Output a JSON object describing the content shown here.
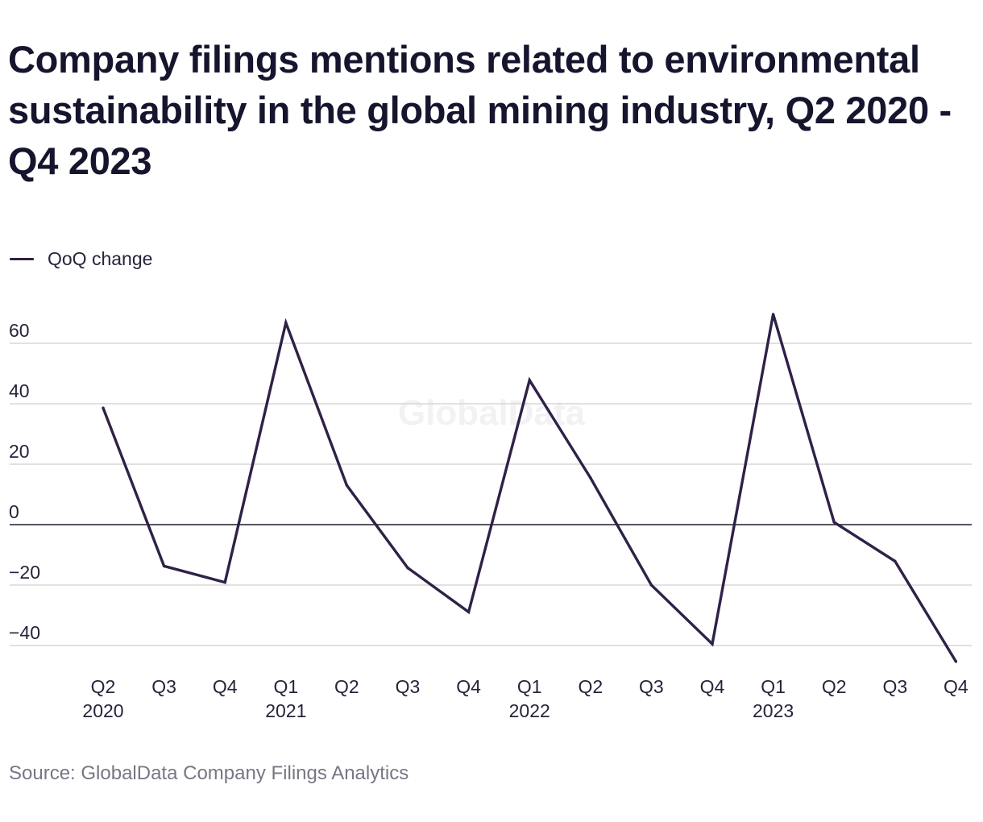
{
  "chart_data": {
    "type": "line",
    "title": "Company filings mentions related to environmental sustainability in the global mining industry, Q2 2020 - Q4 2023",
    "categories": [
      {
        "quarter": "Q2",
        "year": "2020"
      },
      {
        "quarter": "Q3",
        "year": ""
      },
      {
        "quarter": "Q4",
        "year": ""
      },
      {
        "quarter": "Q1",
        "year": "2021"
      },
      {
        "quarter": "Q2",
        "year": ""
      },
      {
        "quarter": "Q3",
        "year": ""
      },
      {
        "quarter": "Q4",
        "year": ""
      },
      {
        "quarter": "Q1",
        "year": "2022"
      },
      {
        "quarter": "Q2",
        "year": ""
      },
      {
        "quarter": "Q3",
        "year": ""
      },
      {
        "quarter": "Q4",
        "year": ""
      },
      {
        "quarter": "Q1",
        "year": "2023"
      },
      {
        "quarter": "Q2",
        "year": ""
      },
      {
        "quarter": "Q3",
        "year": ""
      },
      {
        "quarter": "Q4",
        "year": ""
      }
    ],
    "series": [
      {
        "name": "QoQ change",
        "color": "#2f2147",
        "values": [
          38.6,
          -13.7,
          -19.1,
          66.8,
          13.0,
          -14.3,
          -28.9,
          47.8,
          15.5,
          -20.0,
          -39.5,
          69.6,
          0.8,
          -12.1,
          -45.3
        ]
      }
    ],
    "yticks": [
      60,
      40,
      20,
      0,
      -20,
      -40
    ],
    "ytick_labels": [
      "60",
      "40",
      "20",
      "0",
      "−20",
      "−40"
    ],
    "ylim": [
      -46,
      71
    ],
    "grid": true,
    "legend_position": "top-left",
    "source": "Source: GlobalData Company Filings Analytics",
    "watermark": "GlobalData",
    "colors": {
      "line": "#2f2147",
      "grid": "#d7d7d7",
      "zero_line": "#1f1d2b",
      "text": "#26233b",
      "source": "#797586"
    }
  }
}
